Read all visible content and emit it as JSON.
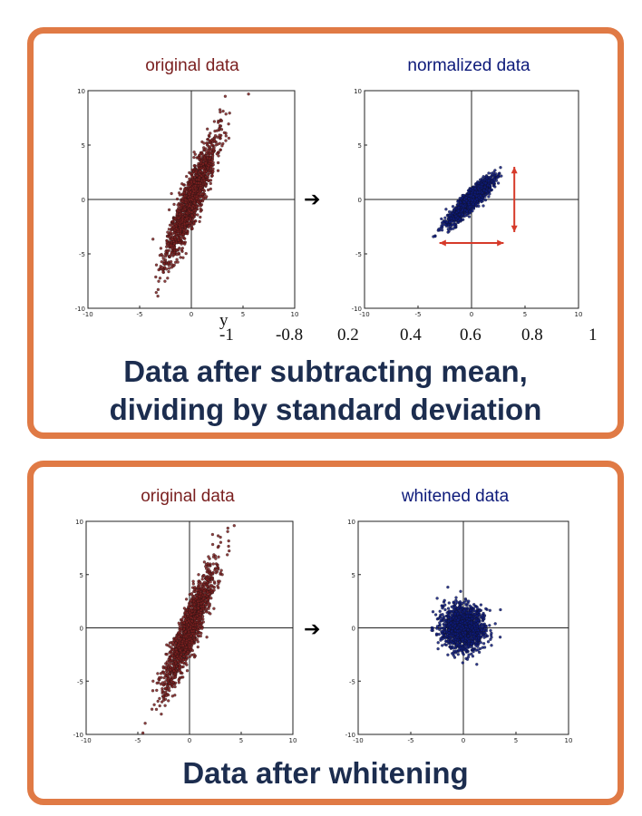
{
  "colors": {
    "frame": "#e07a45",
    "original": "#7a1f1f",
    "normalized": "#0d1a7a",
    "annotation": "#d63a2a",
    "caption": "#1c2d4f"
  },
  "panels": {
    "top": {
      "caption_line1": "Data after subtracting mean,",
      "caption_line2": "dividing by standard deviation"
    },
    "bottom": {
      "caption": "Data after whitening"
    }
  },
  "stray_axis": {
    "y_label": "y",
    "ticks": [
      "-1",
      "-0.8",
      "0.2",
      "0.4",
      "0.6",
      "0.8",
      "1"
    ]
  },
  "chart_data": [
    {
      "id": "orig-top",
      "type": "scatter",
      "title": "original data",
      "xlim": [
        -10,
        10
      ],
      "ylim": [
        -10,
        10
      ],
      "grid": false,
      "axes_through_origin": true,
      "xticks": [
        "-10",
        "-5",
        "0",
        "5",
        "10"
      ],
      "yticks": [
        "10",
        "5",
        "0",
        "-5",
        "-10"
      ],
      "series": [
        {
          "distribution": "correlated-gaussian",
          "n": 1500,
          "mean": [
            0,
            0
          ],
          "sd": [
            1.2,
            2.8
          ],
          "corr": 0.9
        }
      ],
      "color": "#7a1f1f"
    },
    {
      "id": "norm-top",
      "type": "scatter",
      "title": "normalized data",
      "xlim": [
        -10,
        10
      ],
      "ylim": [
        -10,
        10
      ],
      "grid": false,
      "axes_through_origin": true,
      "xticks": [
        "-10",
        "-5",
        "0",
        "5",
        "10"
      ],
      "yticks": [
        "10",
        "5",
        "0",
        "-5",
        "-10"
      ],
      "series": [
        {
          "distribution": "correlated-gaussian",
          "n": 1500,
          "mean": [
            0,
            0
          ],
          "sd": [
            1.0,
            1.0
          ],
          "corr": 0.9
        }
      ],
      "annotations": [
        {
          "type": "double-arrow",
          "from": [
            -3,
            -4
          ],
          "to": [
            3,
            -4
          ]
        },
        {
          "type": "double-arrow",
          "from": [
            4,
            3
          ],
          "to": [
            4,
            -3
          ]
        }
      ],
      "color": "#0d1a7a"
    },
    {
      "id": "orig-bottom",
      "type": "scatter",
      "title": "original data",
      "xlim": [
        -10,
        10
      ],
      "ylim": [
        -10,
        10
      ],
      "grid": false,
      "axes_through_origin": true,
      "xticks": [
        "-10",
        "-5",
        "0",
        "5",
        "10"
      ],
      "yticks": [
        "10",
        "5",
        "0",
        "-5",
        "-10"
      ],
      "series": [
        {
          "distribution": "correlated-gaussian",
          "n": 1500,
          "mean": [
            0,
            0
          ],
          "sd": [
            1.2,
            2.8
          ],
          "corr": 0.9
        }
      ],
      "color": "#7a1f1f"
    },
    {
      "id": "white-bottom",
      "type": "scatter",
      "title": "whitened data",
      "xlim": [
        -10,
        10
      ],
      "ylim": [
        -10,
        10
      ],
      "grid": false,
      "axes_through_origin": true,
      "xticks": [
        "-10",
        "-5",
        "0",
        "5",
        "10"
      ],
      "yticks": [
        "10",
        "5",
        "0",
        "-5",
        "-10"
      ],
      "series": [
        {
          "distribution": "correlated-gaussian",
          "n": 1500,
          "mean": [
            0,
            0
          ],
          "sd": [
            1.0,
            1.0
          ],
          "corr": 0.0
        }
      ],
      "color": "#0d1a7a"
    }
  ]
}
